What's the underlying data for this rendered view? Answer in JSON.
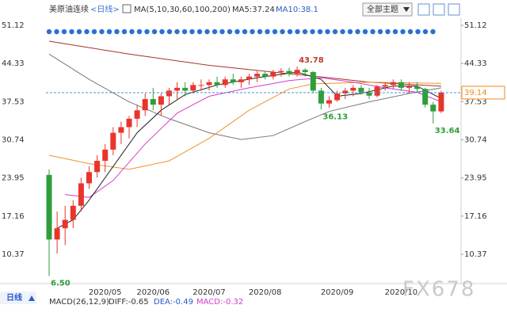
{
  "chart_data": {
    "type": "candlestick",
    "title": "美原油连续",
    "period": "<日线>",
    "indicator": "MA(5,10,30,60,100,200)",
    "readouts": [
      "MA5:37.24",
      "MA10:38.1"
    ],
    "categories": [
      null,
      null,
      null,
      null,
      null,
      null,
      null,
      "2020/05",
      null,
      null,
      null,
      null,
      null,
      "2020/06",
      null,
      null,
      null,
      null,
      null,
      null,
      "2020/07",
      null,
      null,
      null,
      null,
      null,
      null,
      "2020/08",
      null,
      null,
      null,
      null,
      null,
      null,
      null,
      null,
      "2020/09",
      null,
      null,
      null,
      null,
      null,
      null,
      null,
      "2020/10",
      null,
      null,
      null,
      null,
      null
    ],
    "open": [
      24.5,
      13,
      15,
      16.5,
      19,
      23,
      25,
      27,
      29,
      32,
      33,
      34.5,
      36,
      38,
      37,
      38.5,
      39.5,
      40,
      39.5,
      40.5,
      40.5,
      41,
      40.5,
      41.5,
      41,
      41.5,
      42,
      42.5,
      42,
      42.8,
      43,
      42.5,
      43.2,
      42.8,
      39.5,
      37.2,
      37.8,
      39,
      39.5,
      40,
      39.2,
      38.6,
      40.2,
      40.5,
      41,
      40,
      40.2,
      39.8,
      37,
      35.8
    ],
    "high": [
      25.5,
      18,
      19,
      20,
      24,
      26,
      28,
      30,
      33,
      34,
      35,
      37,
      39,
      40,
      39,
      40,
      41,
      41,
      41,
      41.5,
      41.5,
      42,
      42,
      42.5,
      42,
      42.5,
      43,
      43,
      43.2,
      43.5,
      43.6,
      43.78,
      43.5,
      43,
      40,
      38.5,
      39.5,
      40,
      40.5,
      40.5,
      40,
      40.5,
      41,
      41.5,
      41.5,
      41,
      41,
      40,
      37.5,
      39.5
    ],
    "low": [
      6.5,
      10.5,
      12,
      15,
      18,
      22,
      24,
      25,
      28,
      30,
      31,
      33,
      35,
      36,
      35,
      37,
      38,
      38.5,
      39,
      39.5,
      39.5,
      40,
      40,
      40.5,
      40,
      40.5,
      41,
      41.5,
      41.5,
      42,
      42,
      42,
      42,
      39,
      36.13,
      36.5,
      37.5,
      38,
      38.5,
      38.8,
      38,
      38.3,
      39.5,
      39.8,
      39.5,
      39,
      39.2,
      36.5,
      33.64,
      35.5
    ],
    "close": [
      13,
      15,
      16.5,
      19,
      23,
      25,
      27,
      29,
      32,
      33,
      34.5,
      36,
      38,
      37,
      38.5,
      39.5,
      40,
      39.5,
      40.5,
      40.5,
      41,
      40.5,
      41.5,
      41,
      41.5,
      42,
      42.5,
      42,
      42.8,
      43,
      42.5,
      43.2,
      42.8,
      39.5,
      37.2,
      37.8,
      39,
      39.5,
      40,
      39.2,
      38.6,
      40.2,
      40.5,
      41,
      40,
      40.2,
      39.8,
      37,
      35.8,
      39.14
    ],
    "up_color": "#e8352b",
    "down_color": "#2f9e3a",
    "ylim": [
      5.58,
      52.53
    ],
    "yticks": [
      51.12,
      44.33,
      37.53,
      30.74,
      23.95,
      17.16,
      10.37
    ],
    "last_price": 39.14,
    "last_price_color": "#f08a1c",
    "annotations": [
      {
        "index": 31,
        "value": 43.78,
        "color": "#c0392b"
      },
      {
        "index": 34,
        "value": 36.13,
        "color": "#2f9e3a"
      },
      {
        "index": 48,
        "value": 33.64,
        "color": "#2f9e3a"
      },
      {
        "index": 0,
        "value": 6.5,
        "label": "6.50",
        "color": "#2f9e3a"
      }
    ],
    "ma_lines": [
      {
        "color": "#777777",
        "x": [
          0,
          5,
          10,
          15,
          20,
          24,
          28,
          32,
          35,
          40,
          45,
          49
        ],
        "values": [
          46,
          41.5,
          37.5,
          34.5,
          32,
          30.8,
          31.5,
          34,
          35.8,
          37.5,
          39,
          40
        ]
      },
      {
        "color": "#a8322a",
        "x": [
          0,
          10,
          20,
          30,
          35,
          40,
          49
        ],
        "values": [
          48.3,
          46,
          44,
          42.5,
          41.8,
          41,
          40.3
        ]
      },
      {
        "color": "#f0932b",
        "x": [
          0,
          5,
          10,
          15,
          20,
          25,
          30,
          33,
          40,
          49
        ],
        "values": [
          28,
          26.5,
          25.5,
          27,
          31,
          36,
          39.8,
          40.7,
          41,
          40.8
        ]
      },
      {
        "color": "#d63cc8",
        "x": [
          2,
          5,
          8,
          12,
          16,
          20,
          25,
          30,
          34,
          38,
          42,
          46,
          49
        ],
        "values": [
          21,
          20.5,
          23.5,
          30,
          35.5,
          38.5,
          40,
          41.3,
          41.8,
          41,
          40,
          39.2,
          37.5
        ]
      },
      {
        "color": "#222222",
        "x": [
          1,
          3,
          5,
          8,
          11,
          14,
          17,
          21,
          26,
          31,
          34,
          36,
          39,
          43,
          46,
          49
        ],
        "values": [
          15,
          16.5,
          20,
          26,
          32,
          36,
          38.8,
          40.5,
          41.8,
          42.8,
          41.5,
          38.5,
          39,
          40.3,
          40.3,
          38.1
        ]
      }
    ],
    "grid": false
  },
  "ui": {
    "theme_button": "全部主题",
    "period_tab": "日线",
    "macd": {
      "title": "MACD(26,12,9)",
      "items": [
        "DIFF:-0.65",
        "DEA:-0.49",
        "MACD:-0.32"
      ]
    },
    "watermark": "FX678"
  }
}
